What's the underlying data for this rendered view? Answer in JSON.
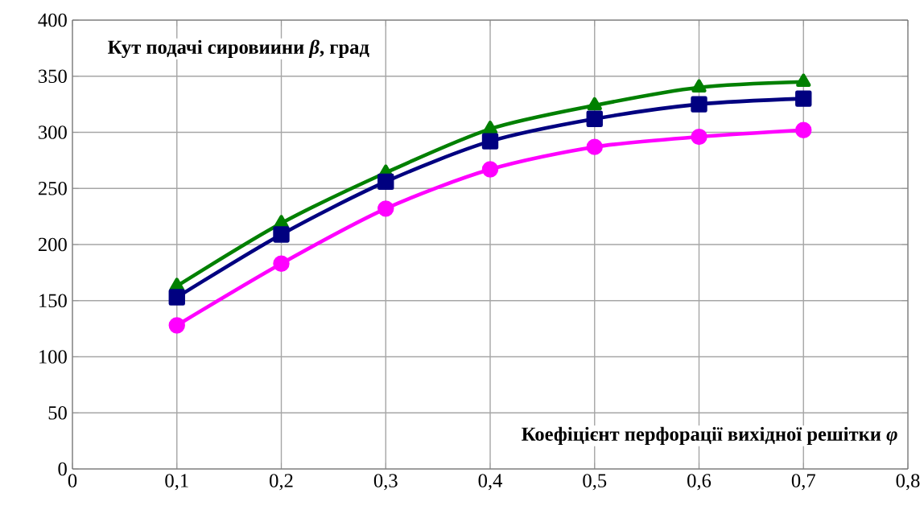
{
  "chart_data": {
    "type": "line",
    "xlabel": "Коефіцієнт перфорації вихідної решітки *φ*",
    "ylabel": "Кут подачі сировиини *β*, град",
    "x": [
      0.1,
      0.2,
      0.3,
      0.4,
      0.5,
      0.6,
      0.7
    ],
    "series": [
      {
        "color": "#008000",
        "marker": "triangle",
        "values": [
          163,
          219,
          264,
          303,
          324,
          340,
          345
        ]
      },
      {
        "color": "#000080",
        "marker": "square",
        "values": [
          153,
          209,
          256,
          292,
          312,
          325,
          330
        ]
      },
      {
        "color": "#ff00ff",
        "marker": "circle",
        "values": [
          128,
          183,
          232,
          267,
          287,
          296,
          302
        ]
      }
    ],
    "xlim": [
      0,
      0.8
    ],
    "ylim": [
      0,
      400
    ],
    "xticks": [
      0,
      {
        "value": 0.1,
        "label": "0,1"
      },
      {
        "value": 0.2,
        "label": "0,2"
      },
      {
        "value": 0.3,
        "label": "0,3"
      },
      {
        "value": 0.4,
        "label": "0,4"
      },
      {
        "value": 0.5,
        "label": "0,5"
      },
      {
        "value": 0.6,
        "label": "0,6"
      },
      {
        "value": 0.7,
        "label": "0,7"
      },
      {
        "value": 0.8,
        "label": "0,8"
      }
    ],
    "yticks": [
      0,
      50,
      100,
      150,
      200,
      250,
      300,
      350,
      400
    ],
    "grid": true,
    "line_style": "solid"
  }
}
